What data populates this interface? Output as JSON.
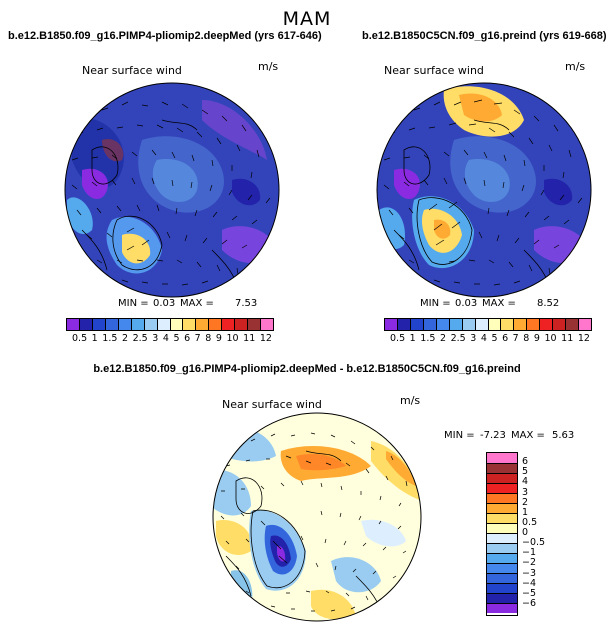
{
  "season": "MAM",
  "panels": [
    {
      "title": "b.e12.B1850.f09_g16.PIMP4-pliomip2.deepMed (yrs 617-646)",
      "variable": "Near surface wind",
      "units": "m/s",
      "min_label": "MIN =",
      "min_value": "0.03",
      "max_label": "MAX =",
      "max_value": "7.53"
    },
    {
      "title": "b.e12.B1850C5CN.f09_g16.preind (yrs 619-668)",
      "variable": "Near surface wind",
      "units": "m/s",
      "min_label": "MIN =",
      "min_value": "0.03",
      "max_label": "MAX =",
      "max_value": "8.52"
    },
    {
      "title": "b.e12.B1850.f09_g16.PIMP4-pliomip2.deepMed - b.e12.B1850C5CN.f09_g16.preind",
      "variable": "Near surface wind",
      "units": "m/s",
      "min_label": "MIN =",
      "min_value": "-7.23",
      "max_label": "MAX =",
      "max_value": "5.63"
    }
  ],
  "abs_colorbar": {
    "labels": [
      "0.5",
      "1",
      "1.5",
      "2",
      "2.5",
      "3",
      "4",
      "5",
      "6",
      "7",
      "8",
      "9",
      "10",
      "11",
      "12"
    ],
    "colors": [
      "#8a2be2",
      "#2222aa",
      "#2244cc",
      "#3366dd",
      "#4488ee",
      "#55aaee",
      "#99ccf0",
      "#ddeeff",
      "#ffffbb",
      "#ffdd66",
      "#ffaa33",
      "#ff7722",
      "#ee2222",
      "#cc2222",
      "#993333",
      "#ff77cc"
    ]
  },
  "diff_colorbar": {
    "labels": [
      "6",
      "5",
      "4",
      "3",
      "2",
      "1",
      "0.5",
      "0",
      "−0.5",
      "−1",
      "−2",
      "−3",
      "−4",
      "−5",
      "−6"
    ],
    "colors": [
      "#ff77cc",
      "#993333",
      "#cc2222",
      "#ee2222",
      "#ff7722",
      "#ffaa33",
      "#ffdd66",
      "#ffffbb",
      "#ddeeff",
      "#99ccf0",
      "#55aaee",
      "#4488ee",
      "#3366dd",
      "#2244cc",
      "#2222aa",
      "#8a2be2"
    ]
  },
  "colors": {
    "map_base_abs": "#3344bb",
    "map_base_diff": "#ffffdd"
  }
}
